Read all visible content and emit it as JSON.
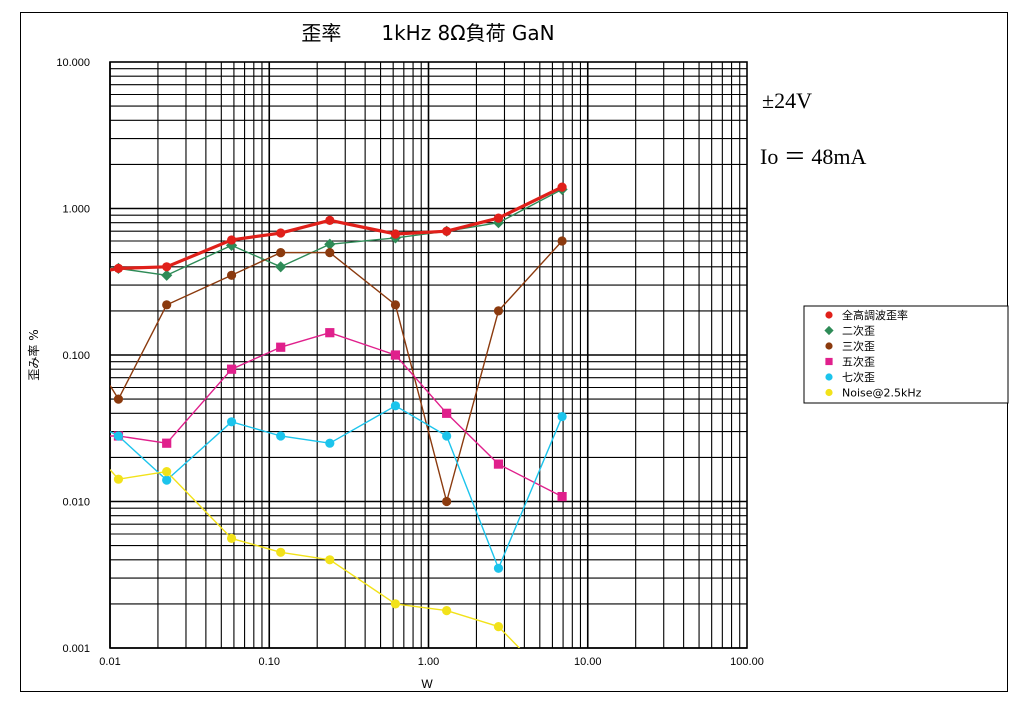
{
  "chart_data": {
    "type": "line",
    "title": "歪率　　1kHz 8Ω負荷  GaN",
    "xlabel": "W",
    "ylabel": "歪み率 %",
    "xscale": "log",
    "yscale": "log",
    "xlim": [
      0.01,
      100
    ],
    "ylim": [
      0.001,
      10
    ],
    "xticks": [
      0.01,
      0.1,
      1,
      10,
      100
    ],
    "xtick_labels": [
      "0.01",
      "0.10",
      "1.00",
      "10.00",
      "100.00"
    ],
    "yticks": [
      0.001,
      0.01,
      0.1,
      1,
      10
    ],
    "ytick_labels": [
      "0.001",
      "0.010",
      "0.100",
      "1.000",
      "10.000"
    ],
    "grid": true,
    "annotations": [
      "±24V",
      "Io ＝ 48mA"
    ],
    "legend_position": "right",
    "series": [
      {
        "name": "全高調波歪率",
        "color": "#e0201a",
        "marker": "circle",
        "width": 3.2,
        "x": [
          0.0113,
          0.0227,
          0.058,
          0.118,
          0.24,
          0.62,
          1.3,
          2.75,
          6.9
        ],
        "y": [
          0.39,
          0.4,
          0.61,
          0.68,
          0.83,
          0.67,
          0.7,
          0.86,
          1.4
        ],
        "tail_x": 0.01,
        "tail_y": 0.38
      },
      {
        "name": "二次歪",
        "color": "#2e8b57",
        "marker": "diamond",
        "width": 1.4,
        "x": [
          0.0113,
          0.0227,
          0.058,
          0.118,
          0.24,
          0.62,
          1.3,
          2.75,
          6.9
        ],
        "y": [
          0.39,
          0.35,
          0.56,
          0.4,
          0.57,
          0.63,
          0.7,
          0.8,
          1.35
        ],
        "tail_x": 0.01,
        "tail_y": 0.39
      },
      {
        "name": "三次歪",
        "color": "#8b3a0e",
        "marker": "circle",
        "width": 1.4,
        "x": [
          0.0113,
          0.0227,
          0.058,
          0.118,
          0.24,
          0.62,
          1.3,
          2.75,
          6.9
        ],
        "y": [
          0.05,
          0.22,
          0.35,
          0.5,
          0.5,
          0.22,
          0.01,
          0.2,
          0.6
        ],
        "tail_x": 0.01,
        "tail_y": 0.062
      },
      {
        "name": "五次歪",
        "color": "#e0208c",
        "marker": "square",
        "width": 1.4,
        "x": [
          0.0113,
          0.0227,
          0.058,
          0.118,
          0.24,
          0.62,
          1.3,
          2.75,
          6.9
        ],
        "y": [
          0.028,
          0.025,
          0.08,
          0.113,
          0.142,
          0.1,
          0.04,
          0.018,
          0.0108
        ],
        "tail_x": 0.01,
        "tail_y": 0.028
      },
      {
        "name": "七次歪",
        "color": "#1cc4ec",
        "marker": "circle",
        "width": 1.4,
        "x": [
          0.0113,
          0.0227,
          0.058,
          0.118,
          0.24,
          0.62,
          1.3,
          2.75,
          6.9
        ],
        "y": [
          0.028,
          0.014,
          0.035,
          0.028,
          0.025,
          0.045,
          0.028,
          0.0035,
          0.038
        ],
        "tail_x": 0.01,
        "tail_y": 0.03
      },
      {
        "name": "Noise@2.5kHz",
        "color": "#f2e21a",
        "marker": "circle",
        "width": 1.4,
        "x": [
          0.0113,
          0.0227,
          0.058,
          0.118,
          0.24,
          0.62,
          1.3,
          2.75,
          4.3
        ],
        "y": [
          0.0142,
          0.016,
          0.0056,
          0.0045,
          0.004,
          0.002,
          0.0018,
          0.0014,
          0.00085
        ],
        "tail_x": 0.01,
        "tail_y": 0.0165,
        "hidden_last": true
      }
    ]
  }
}
